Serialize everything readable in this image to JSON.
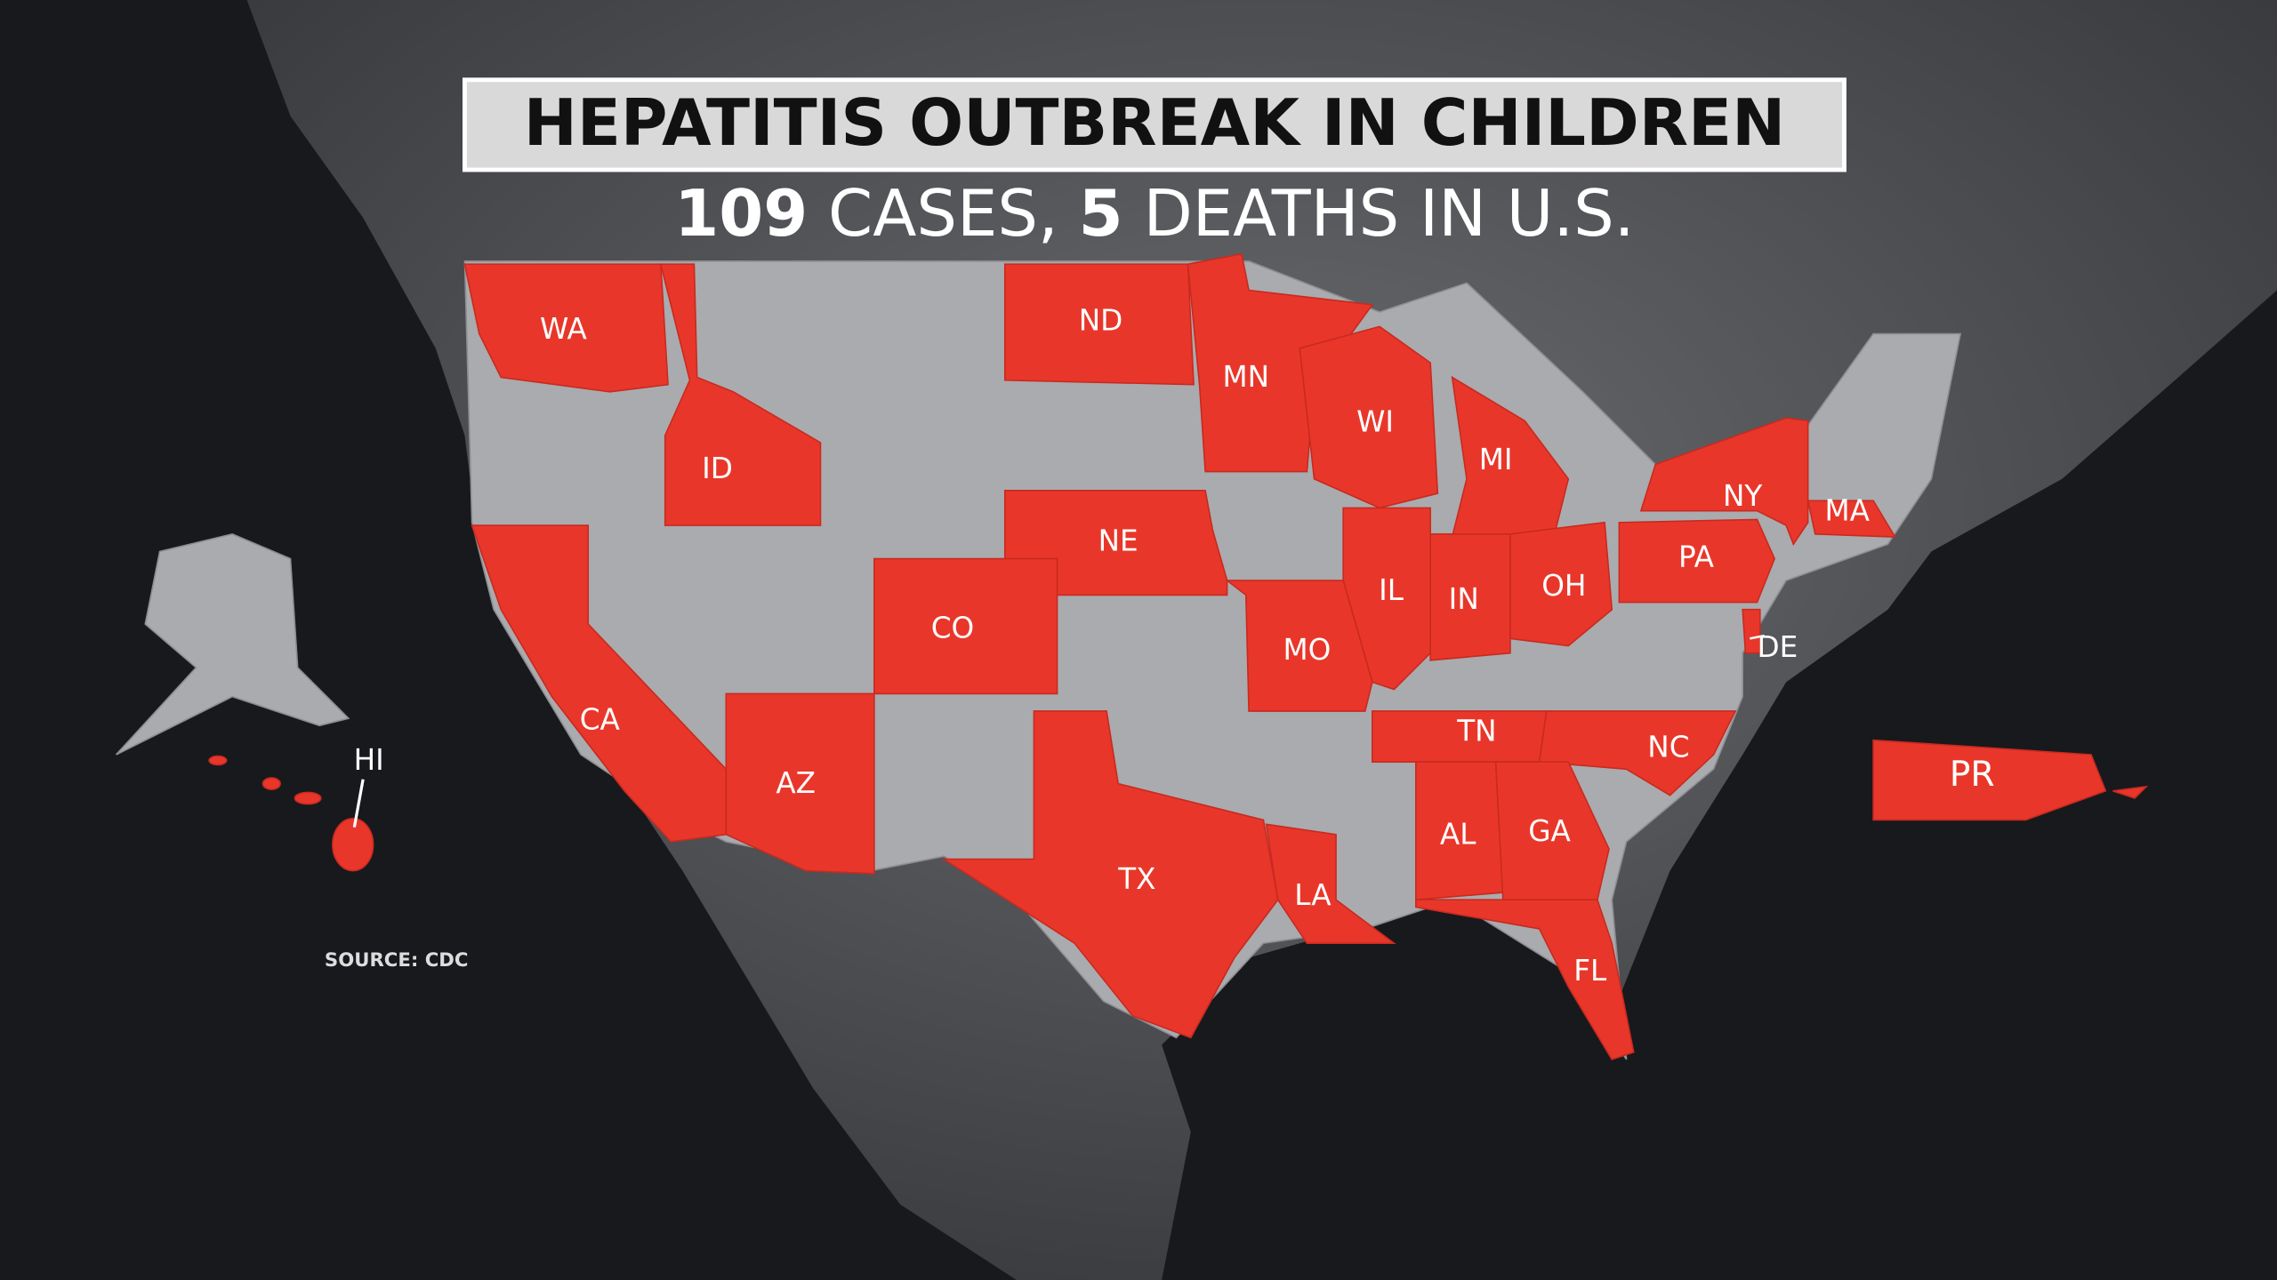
{
  "title": "HEPATITIS OUTBREAK IN CHILDREN",
  "subtitle": {
    "cases_count": "109",
    "cases_label": "CASES,",
    "deaths_count": "5",
    "deaths_label": "DEATHS IN U.S."
  },
  "source": "SOURCE: CDC",
  "states": [
    "WA",
    "ID",
    "ND",
    "MN",
    "WI",
    "MI",
    "NE",
    "CO",
    "IL",
    "IN",
    "OH",
    "MO",
    "NY",
    "PA",
    "MA",
    "DE",
    "CA",
    "AZ",
    "TX",
    "LA",
    "TN",
    "NC",
    "AL",
    "GA",
    "FL",
    "PR",
    "HI"
  ]
}
